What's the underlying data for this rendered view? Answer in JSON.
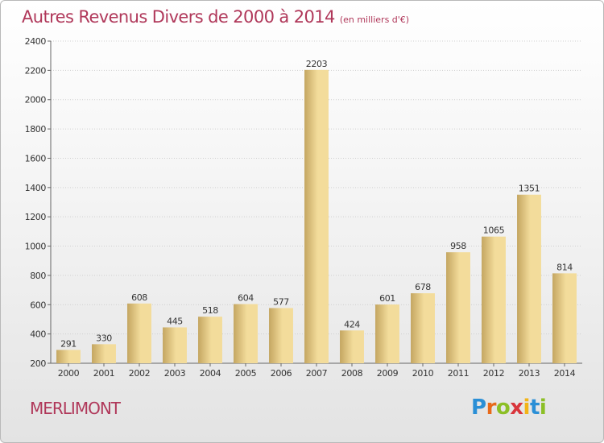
{
  "header": {
    "title": "Autres Revenus Divers de 2000 à 2014",
    "subtitle": "(en milliers d'€)"
  },
  "footer": {
    "commune": "MERLIMONT",
    "logo_letters": [
      "P",
      "r",
      "o",
      "x",
      "i",
      "t",
      "i"
    ],
    "logo_colors": [
      "#2a8fd6",
      "#e86a1a",
      "#8cbf26",
      "#d9353c",
      "#f2b418",
      "#2a8fd6",
      "#8cbf26"
    ]
  },
  "colors": {
    "title": "#b0385a",
    "bar_light": "#f3dc9b",
    "bar_dark": "#c4a661",
    "grid": "#cfcfcf"
  },
  "chart_data": {
    "type": "bar",
    "title": "Autres Revenus Divers de 2000 à 2014",
    "subtitle": "(en milliers d'€)",
    "categories": [
      "2000",
      "2001",
      "2002",
      "2003",
      "2004",
      "2005",
      "2006",
      "2007",
      "2008",
      "2009",
      "2010",
      "2011",
      "2012",
      "2013",
      "2014"
    ],
    "values": [
      291,
      330,
      608,
      445,
      518,
      604,
      577,
      2203,
      424,
      601,
      678,
      958,
      1065,
      1351,
      814
    ],
    "ylim": [
      200,
      2400
    ],
    "yticks": [
      200,
      400,
      600,
      800,
      1000,
      1200,
      1400,
      1600,
      1800,
      2000,
      2200,
      2400
    ],
    "grid": true,
    "data_labels": true
  }
}
